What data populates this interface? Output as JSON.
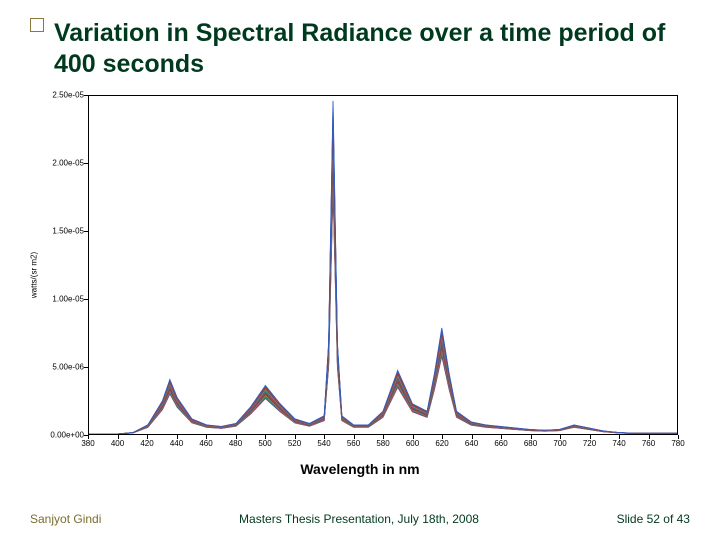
{
  "slide": {
    "title": "Variation in Spectral Radiance over a time period of 400 seconds",
    "title_color": "#003a1e",
    "title_fontsize": 25,
    "accent_square_border": "#8a7a3a"
  },
  "chart": {
    "type": "line",
    "background_color": "#ffffff",
    "border_color": "#000000",
    "xaxis_caption": "Wavelength in nm",
    "ylabel": "watts/(sr m2)",
    "xlim": [
      380,
      780
    ],
    "ylim": [
      0,
      2.5e-05
    ],
    "xticks": [
      380,
      400,
      420,
      440,
      460,
      480,
      500,
      520,
      540,
      560,
      580,
      600,
      620,
      640,
      660,
      680,
      700,
      720,
      740,
      760,
      780
    ],
    "yticks": [
      {
        "v": 0,
        "label": "0.00e+00"
      },
      {
        "v": 5e-06,
        "label": "5.00e-06"
      },
      {
        "v": 1e-05,
        "label": "1.00e-05"
      },
      {
        "v": 1.5e-05,
        "label": "1.50e-05"
      },
      {
        "v": 2e-05,
        "label": "2.00e-05"
      },
      {
        "v": 2.5e-05,
        "label": "2.50e-05"
      }
    ],
    "series_colors": [
      "#e03030",
      "#2060d0",
      "#20a030",
      "#b030c0",
      "#e08020",
      "#008080",
      "#c02060",
      "#606020"
    ],
    "line_width": 0.9,
    "wavelengths": [
      380,
      390,
      400,
      410,
      420,
      430,
      435,
      440,
      450,
      460,
      470,
      480,
      490,
      500,
      510,
      520,
      530,
      540,
      543,
      546,
      549,
      552,
      560,
      570,
      580,
      590,
      600,
      610,
      615,
      620,
      625,
      630,
      640,
      650,
      660,
      670,
      680,
      690,
      700,
      710,
      720,
      730,
      740,
      750,
      760,
      770,
      780
    ],
    "base_values": [
      0,
      0,
      0,
      0.1,
      0.6,
      2.2,
      3.6,
      2.4,
      1.0,
      0.6,
      0.5,
      0.7,
      1.8,
      3.2,
      2.0,
      1.0,
      0.7,
      1.2,
      6.0,
      22.0,
      6.0,
      1.2,
      0.6,
      0.6,
      1.5,
      4.2,
      2.0,
      1.5,
      4.0,
      7.0,
      4.0,
      1.5,
      0.8,
      0.6,
      0.5,
      0.4,
      0.3,
      0.25,
      0.3,
      0.6,
      0.4,
      0.2,
      0.1,
      0.05,
      0.05,
      0.05,
      0.05
    ],
    "base_scale": 1e-06,
    "n_series": 18,
    "series_scale_min": 0.82,
    "series_scale_max": 1.12
  },
  "footer": {
    "author": "Sanjyot Gindi",
    "center": "Masters Thesis Presentation, July 18th, 2008",
    "pageno": "Slide 52 of 43",
    "author_color": "#7a6e2e",
    "center_color": "#003a1e",
    "pageno_color": "#003a1e",
    "fontsize": 12
  }
}
